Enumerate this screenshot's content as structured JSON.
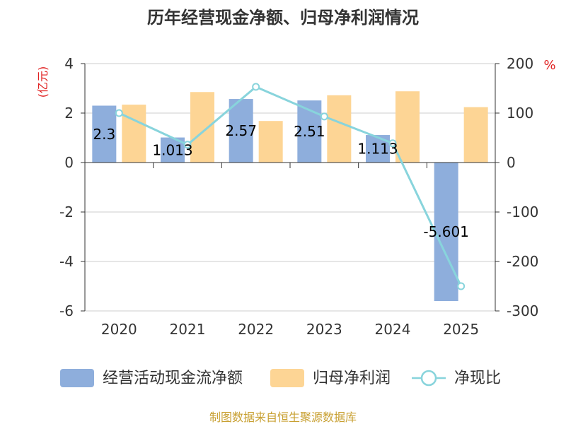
{
  "chart_data": {
    "type": "bar",
    "title": "历年经营现金净额、归母净利润情况",
    "categories": [
      "2020",
      "2021",
      "2022",
      "2023",
      "2024",
      "2025"
    ],
    "left_axis": {
      "unit": "(亿元)",
      "ylim": [
        -6,
        4
      ],
      "ticks": [
        "4",
        "2",
        "0",
        "-2",
        "-4",
        "-6"
      ],
      "tick_values": [
        4,
        2,
        0,
        -2,
        -4,
        -6
      ]
    },
    "right_axis": {
      "unit": "%",
      "ylim": [
        -300,
        200
      ],
      "ticks": [
        "200",
        "100",
        "0",
        "-100",
        "-200",
        "-300"
      ],
      "tick_values": [
        200,
        100,
        0,
        -100,
        -200,
        -300
      ]
    },
    "series": [
      {
        "name": "经营活动现金流净额",
        "type": "bar",
        "axis": "left",
        "color": "#8eaedc",
        "values": [
          2.3,
          1.013,
          2.57,
          2.51,
          1.113,
          -5.601
        ],
        "labels": [
          "2.3",
          "1.013",
          "2.57",
          "2.51",
          "1.113",
          "-5.601"
        ]
      },
      {
        "name": "归母净利润",
        "type": "bar",
        "axis": "left",
        "color": "#fdd595",
        "values": [
          2.34,
          2.85,
          1.68,
          2.72,
          2.88,
          2.24
        ]
      },
      {
        "name": "净现比",
        "type": "line",
        "axis": "right",
        "color": "#88d4dc",
        "values": [
          100,
          36,
          153,
          93,
          39,
          -250
        ]
      }
    ],
    "grid": true,
    "legend_position": "bottom"
  },
  "source_note": "制图数据来自恒生聚源数据库"
}
